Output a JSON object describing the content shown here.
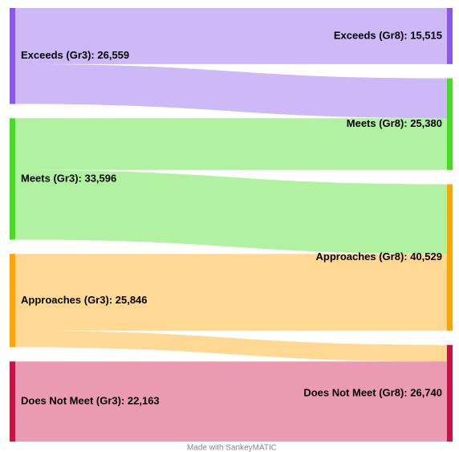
{
  "chart_data": {
    "type": "sankey",
    "nodes": [
      {
        "label": "Exceeds (Gr3): 26,559",
        "value": 26559,
        "color": "#8b57ee",
        "column": 0
      },
      {
        "label": "Meets (Gr3): 33,596",
        "value": 33596,
        "color": "#44dd22",
        "column": 0
      },
      {
        "label": "Approaches (Gr3): 25,846",
        "value": 25846,
        "color": "#ffa500",
        "column": 0
      },
      {
        "label": "Does Not Meet (Gr3): 22,163",
        "value": 22163,
        "color": "#cc1144",
        "column": 0
      },
      {
        "label": "Exceeds (Gr8): 15,515",
        "value": 15515,
        "color": "#8b57ee",
        "column": 1
      },
      {
        "label": "Meets (Gr8): 25,380",
        "value": 25380,
        "color": "#44dd22",
        "column": 1
      },
      {
        "label": "Approaches (Gr8): 40,529",
        "value": 40529,
        "color": "#ffa500",
        "column": 1
      },
      {
        "label": "Does Not Meet (Gr8): 26,740",
        "value": 26740,
        "color": "#cc1144",
        "column": 1
      }
    ],
    "links": [
      {
        "source": 0,
        "target": 4,
        "value": 15515
      },
      {
        "source": 0,
        "target": 5,
        "value": 11044
      },
      {
        "source": 1,
        "target": 5,
        "value": 14336
      },
      {
        "source": 1,
        "target": 6,
        "value": 19260
      },
      {
        "source": 2,
        "target": 6,
        "value": 21269
      },
      {
        "source": 2,
        "target": 7,
        "value": 4577
      },
      {
        "source": 3,
        "target": 7,
        "value": 22163
      }
    ],
    "footer": "Made with SankeyMATIC"
  }
}
